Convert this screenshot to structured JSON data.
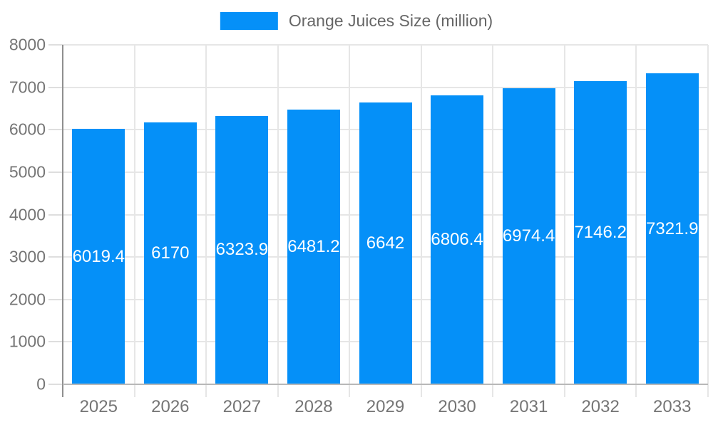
{
  "legend": {
    "label": "Orange Juices Size (million)"
  },
  "chart_data": {
    "type": "bar",
    "title": "",
    "series_name": "Orange Juices Size (million)",
    "categories": [
      "2025",
      "2026",
      "2027",
      "2028",
      "2029",
      "2030",
      "2031",
      "2032",
      "2033"
    ],
    "values": [
      6019.4,
      6170,
      6323.9,
      6481.2,
      6642,
      6806.4,
      6974.4,
      7146.2,
      7321.9
    ],
    "value_labels": [
      "6019.4",
      "6170",
      "6323.9",
      "6481.2",
      "6642",
      "6806.4",
      "6974.4",
      "7146.2",
      "7321.9"
    ],
    "xlabel": "",
    "ylabel": "",
    "ylim": [
      0,
      8000
    ],
    "ytick_step": 1000,
    "ytick_labels": [
      "0",
      "1000",
      "2000",
      "3000",
      "4000",
      "5000",
      "6000",
      "7000",
      "8000"
    ],
    "grid": true,
    "legend_position": "top"
  },
  "colors": {
    "bar": "#0590f8",
    "bar_value_text": "#ffffff",
    "axis_label_text": "#757575",
    "legend_text": "#666666",
    "gridline": "#e6e6e6",
    "y_axis_line": "#8f8f8f",
    "x_baseline": "#b8b8b8",
    "background": "#ffffff"
  }
}
